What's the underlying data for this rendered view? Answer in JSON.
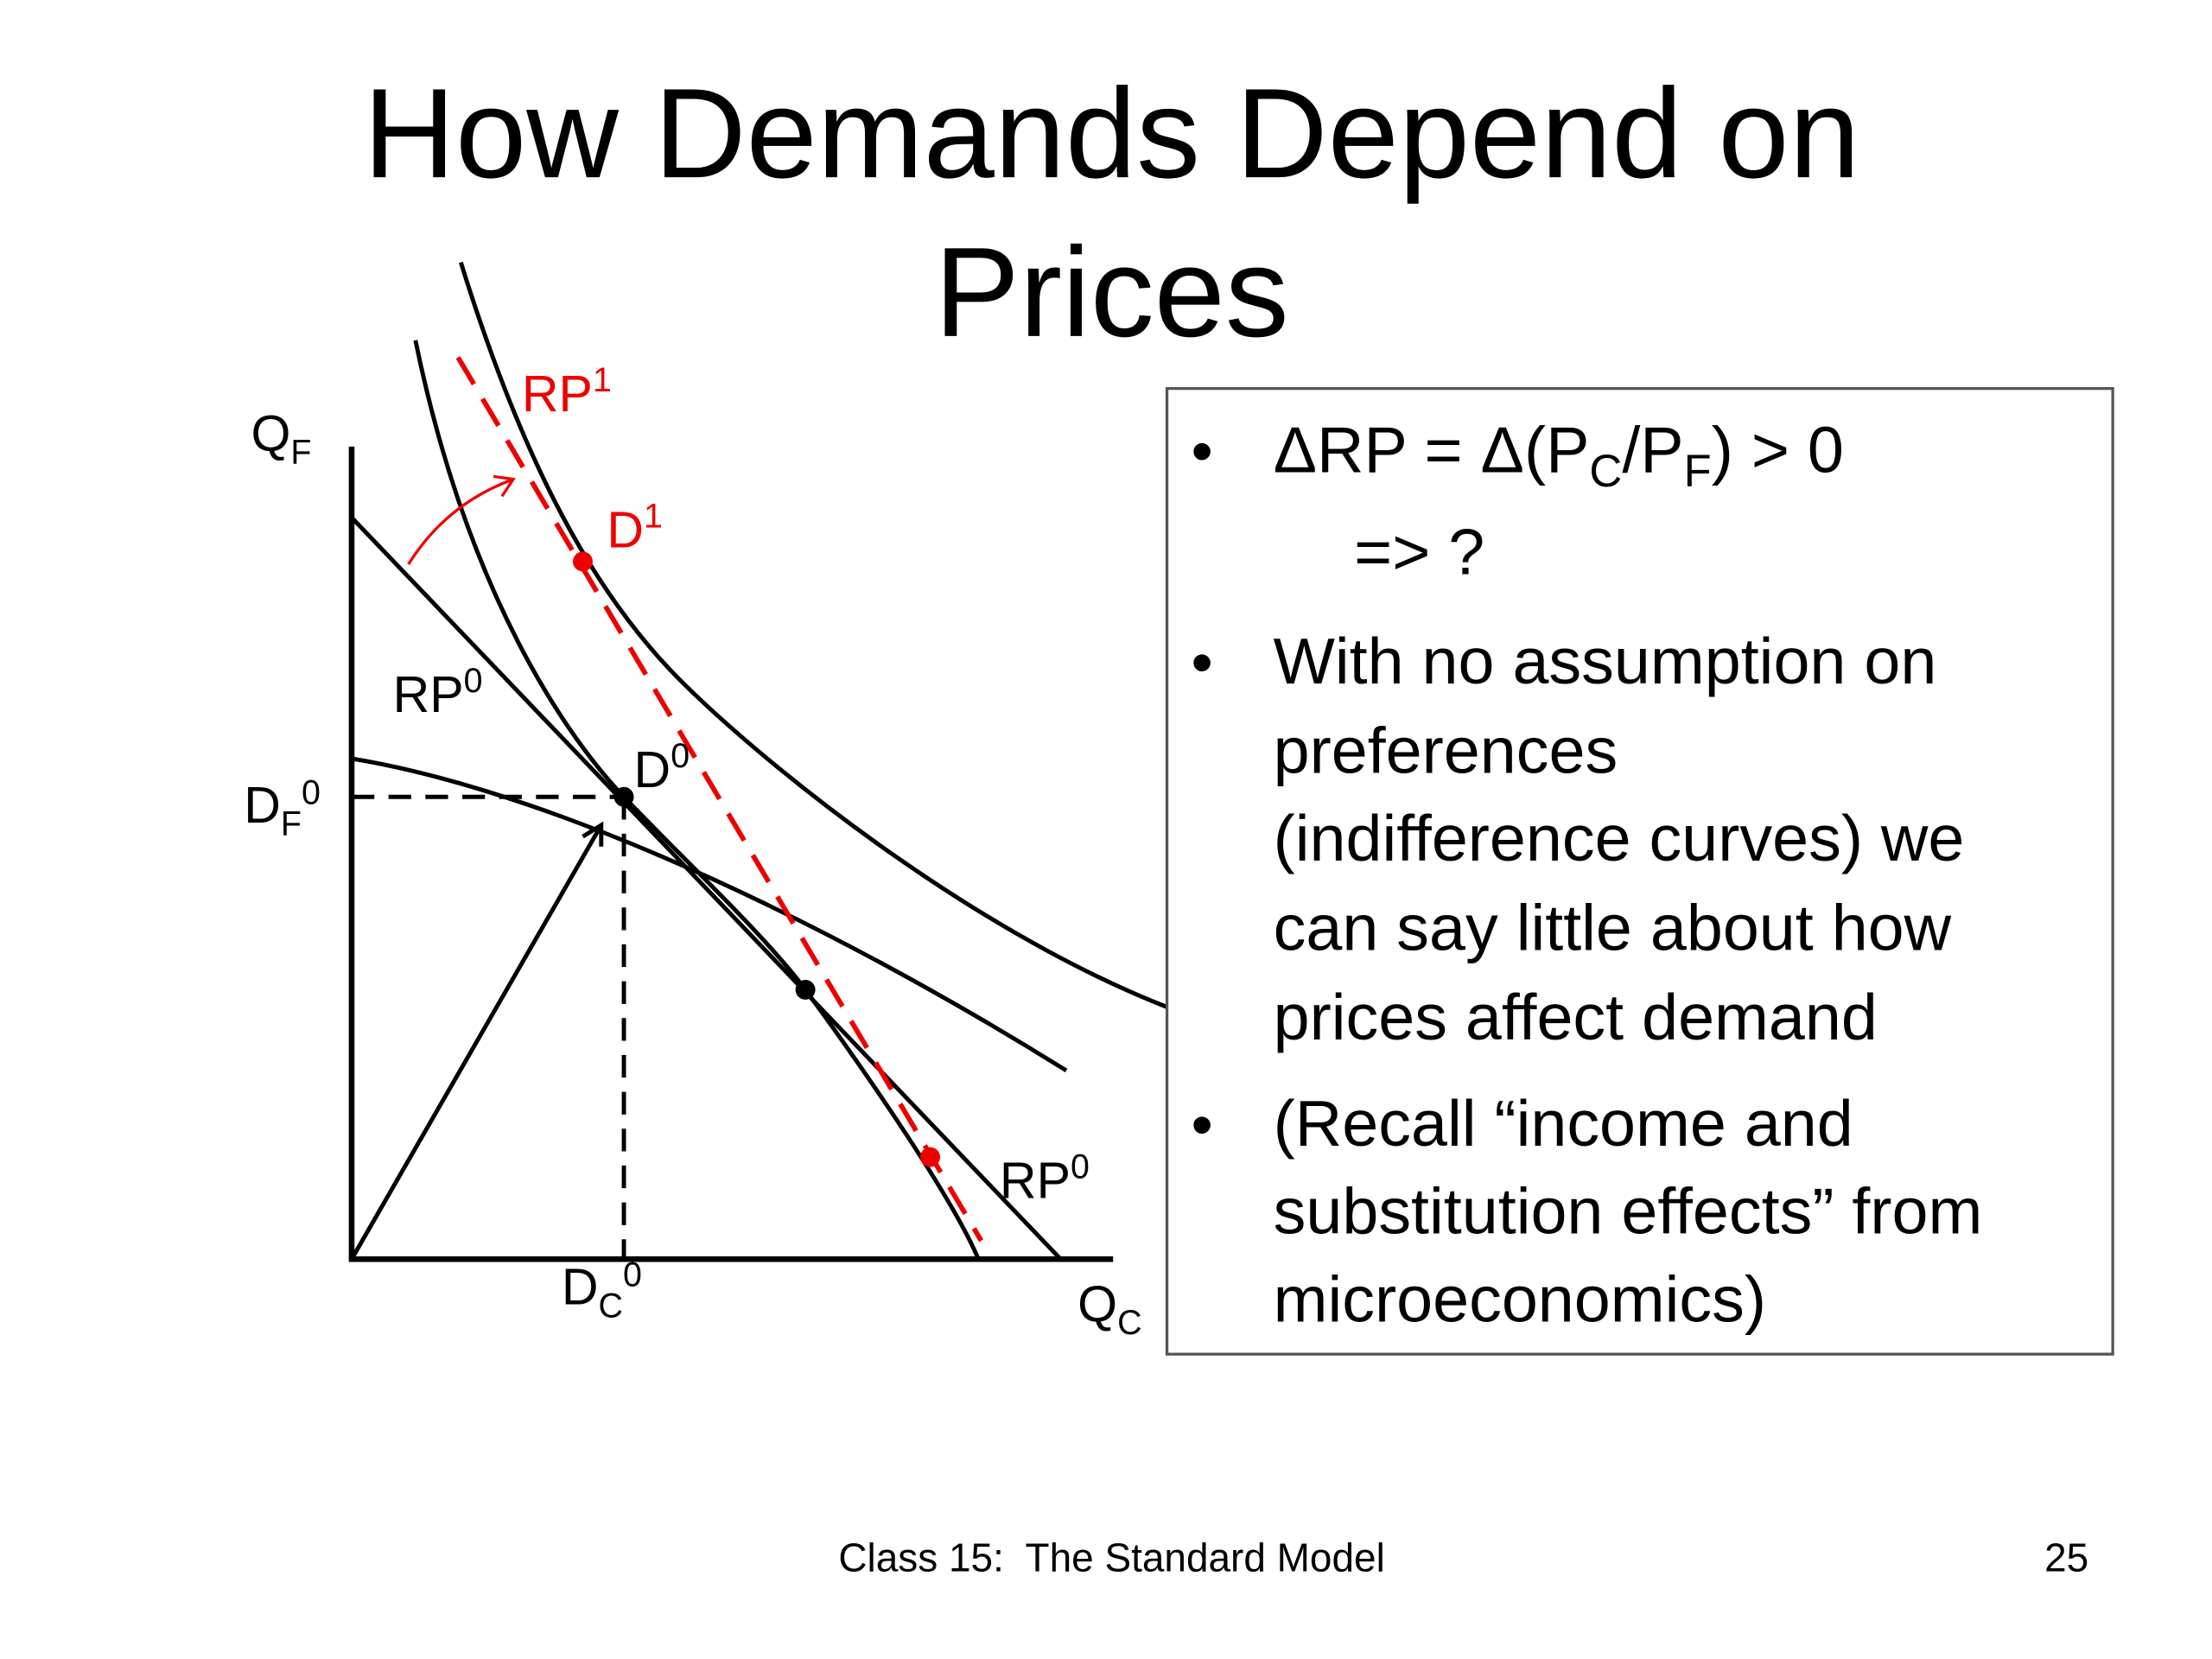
{
  "header": {
    "title": [
      "How Demands Depend on",
      "Prices"
    ]
  },
  "diagram": {
    "labels": [
      {
        "text": "Q",
        "sub": "F"
      },
      {
        "text": "RP",
        "sup": "1"
      },
      {
        "text": "D",
        "sup": "1"
      },
      {
        "text": "RP",
        "sup": "0"
      },
      {
        "text": "D",
        "sup": "0"
      },
      {
        "text": "D",
        "sub": "F",
        "sup": "0"
      },
      {
        "text": "RP",
        "sup": "0"
      },
      {
        "text": "D",
        "sub": "C",
        "sup": "0"
      },
      {
        "text": "Q",
        "sub": "C"
      }
    ]
  },
  "box": {
    "bullets": [
      {
        "lines": [
          [
            "ΔRP = Δ(P",
            {
              "text": "C",
              "sub": true
            },
            "/P",
            {
              "text": "F",
              "sub": true
            },
            ") > 0"
          ],
          [
            "=> ?"
          ]
        ]
      },
      {
        "lines": [
          [
            "With no assumption on"
          ],
          [
            "preferences"
          ],
          [
            "(indifference curves) we"
          ],
          [
            "can say little about how"
          ],
          [
            "prices affect demand"
          ]
        ]
      },
      {
        "lines": [
          [
            "(Recall “income and"
          ],
          [
            "substitution effects” from"
          ],
          [
            "microeconomics)"
          ]
        ]
      }
    ]
  },
  "footer": {
    "caption": "Class 15:  The Standard Model",
    "page": "25"
  }
}
